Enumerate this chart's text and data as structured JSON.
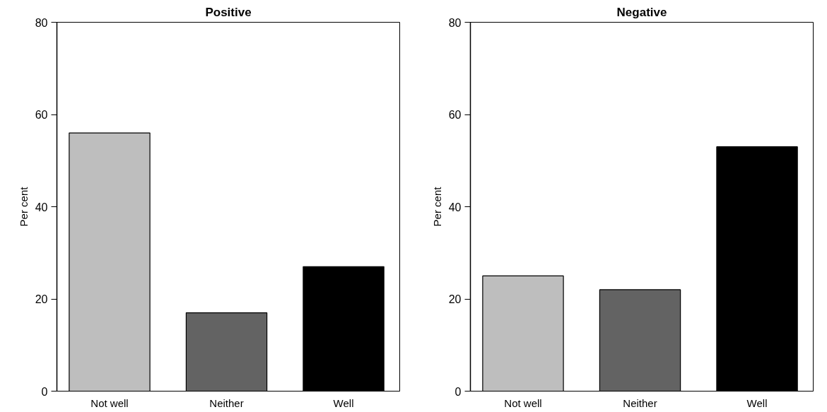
{
  "chart_data": [
    {
      "type": "bar",
      "title": "Positive",
      "ylabel": "Per cent",
      "categories": [
        "Not well",
        "Neither",
        "Well"
      ],
      "values": [
        56,
        17,
        27
      ],
      "colors": [
        "#bebebe",
        "#636363",
        "#000000"
      ],
      "ylim": [
        0,
        80
      ],
      "yticks": [
        0,
        20,
        40,
        60,
        80
      ],
      "grid": false
    },
    {
      "type": "bar",
      "title": "Negative",
      "ylabel": "Per cent",
      "categories": [
        "Not well",
        "Neither",
        "Well"
      ],
      "values": [
        25,
        22,
        53
      ],
      "colors": [
        "#bebebe",
        "#636363",
        "#000000"
      ],
      "ylim": [
        0,
        80
      ],
      "yticks": [
        0,
        20,
        40,
        60,
        80
      ],
      "grid": false
    }
  ]
}
